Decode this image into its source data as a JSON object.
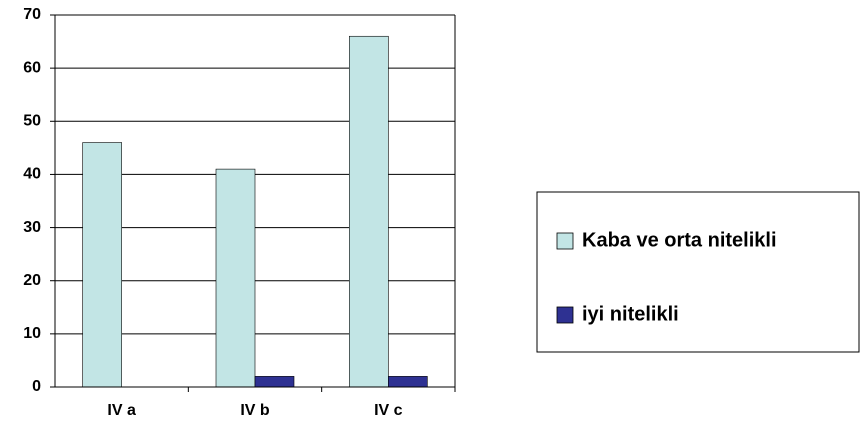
{
  "chart_data": {
    "type": "bar",
    "categories": [
      "IV a",
      "IV b",
      "IV c"
    ],
    "series": [
      {
        "name": "Kaba ve orta nitelikli",
        "color": "#c2e5e5",
        "values": [
          46,
          41,
          66
        ]
      },
      {
        "name": "iyi nitelikli",
        "color": "#2e3192",
        "values": [
          0,
          2,
          2
        ]
      }
    ],
    "ylim": [
      0,
      70
    ],
    "yticks": [
      0,
      10,
      20,
      30,
      40,
      50,
      60,
      70
    ],
    "grid": true,
    "legend": "right"
  }
}
